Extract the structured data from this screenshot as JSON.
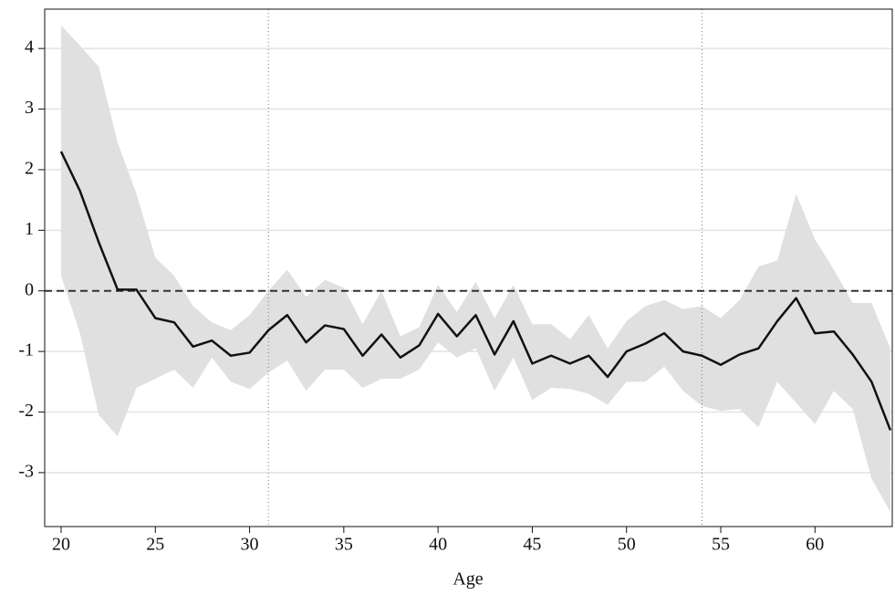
{
  "chart_data": {
    "type": "line",
    "x_label": "Age",
    "x": [
      20,
      21,
      22,
      23,
      24,
      25,
      26,
      27,
      28,
      29,
      30,
      31,
      32,
      33,
      34,
      35,
      36,
      37,
      38,
      39,
      40,
      41,
      42,
      43,
      44,
      45,
      46,
      47,
      48,
      49,
      50,
      51,
      52,
      53,
      54,
      55,
      56,
      57,
      58,
      59,
      60,
      61,
      62,
      63,
      64
    ],
    "values": [
      2.3,
      1.65,
      0.8,
      0.02,
      0.02,
      -0.45,
      -0.52,
      -0.92,
      -0.82,
      -1.07,
      -1.02,
      -0.65,
      -0.4,
      -0.85,
      -0.57,
      -0.63,
      -1.07,
      -0.72,
      -1.1,
      -0.9,
      -0.38,
      -0.75,
      -0.4,
      -1.05,
      -0.5,
      -1.2,
      -1.07,
      -1.2,
      -1.07,
      -1.42,
      -1.0,
      -0.87,
      -0.7,
      -1.0,
      -1.07,
      -1.22,
      -1.05,
      -0.95,
      -0.5,
      -0.12,
      -0.7,
      -0.67,
      -1.05,
      -1.5,
      -2.3
    ],
    "upper": [
      4.38,
      4.05,
      3.7,
      2.45,
      1.6,
      0.55,
      0.25,
      -0.25,
      -0.52,
      -0.65,
      -0.4,
      0.0,
      0.35,
      -0.1,
      0.18,
      0.05,
      -0.55,
      0.0,
      -0.75,
      -0.6,
      0.1,
      -0.35,
      0.15,
      -0.45,
      0.1,
      -0.55,
      -0.55,
      -0.8,
      -0.4,
      -0.95,
      -0.5,
      -0.25,
      -0.15,
      -0.3,
      -0.25,
      -0.45,
      -0.15,
      0.4,
      0.5,
      1.6,
      0.85,
      0.35,
      -0.2,
      -0.2,
      -0.95
    ],
    "lower": [
      0.25,
      -0.7,
      -2.05,
      -2.4,
      -1.6,
      -1.45,
      -1.3,
      -1.6,
      -1.1,
      -1.5,
      -1.62,
      -1.35,
      -1.15,
      -1.65,
      -1.3,
      -1.3,
      -1.6,
      -1.45,
      -1.45,
      -1.3,
      -0.85,
      -1.1,
      -0.95,
      -1.65,
      -1.1,
      -1.8,
      -1.6,
      -1.62,
      -1.7,
      -1.88,
      -1.5,
      -1.5,
      -1.25,
      -1.65,
      -1.9,
      -1.98,
      -1.95,
      -2.25,
      -1.5,
      -1.85,
      -2.2,
      -1.65,
      -1.95,
      -3.1,
      -3.65
    ],
    "color": "#111111",
    "band_color": "#e0e0e0",
    "xlim": [
      19.13,
      64.1
    ],
    "ylim": [
      -3.89,
      4.65
    ],
    "xticks": [
      20,
      25,
      30,
      35,
      40,
      45,
      50,
      55,
      60
    ],
    "yticks": [
      -3,
      -2,
      -1,
      0,
      1,
      2,
      3,
      4
    ],
    "grid": true,
    "hline": 0,
    "vlines": [
      31,
      54
    ]
  }
}
